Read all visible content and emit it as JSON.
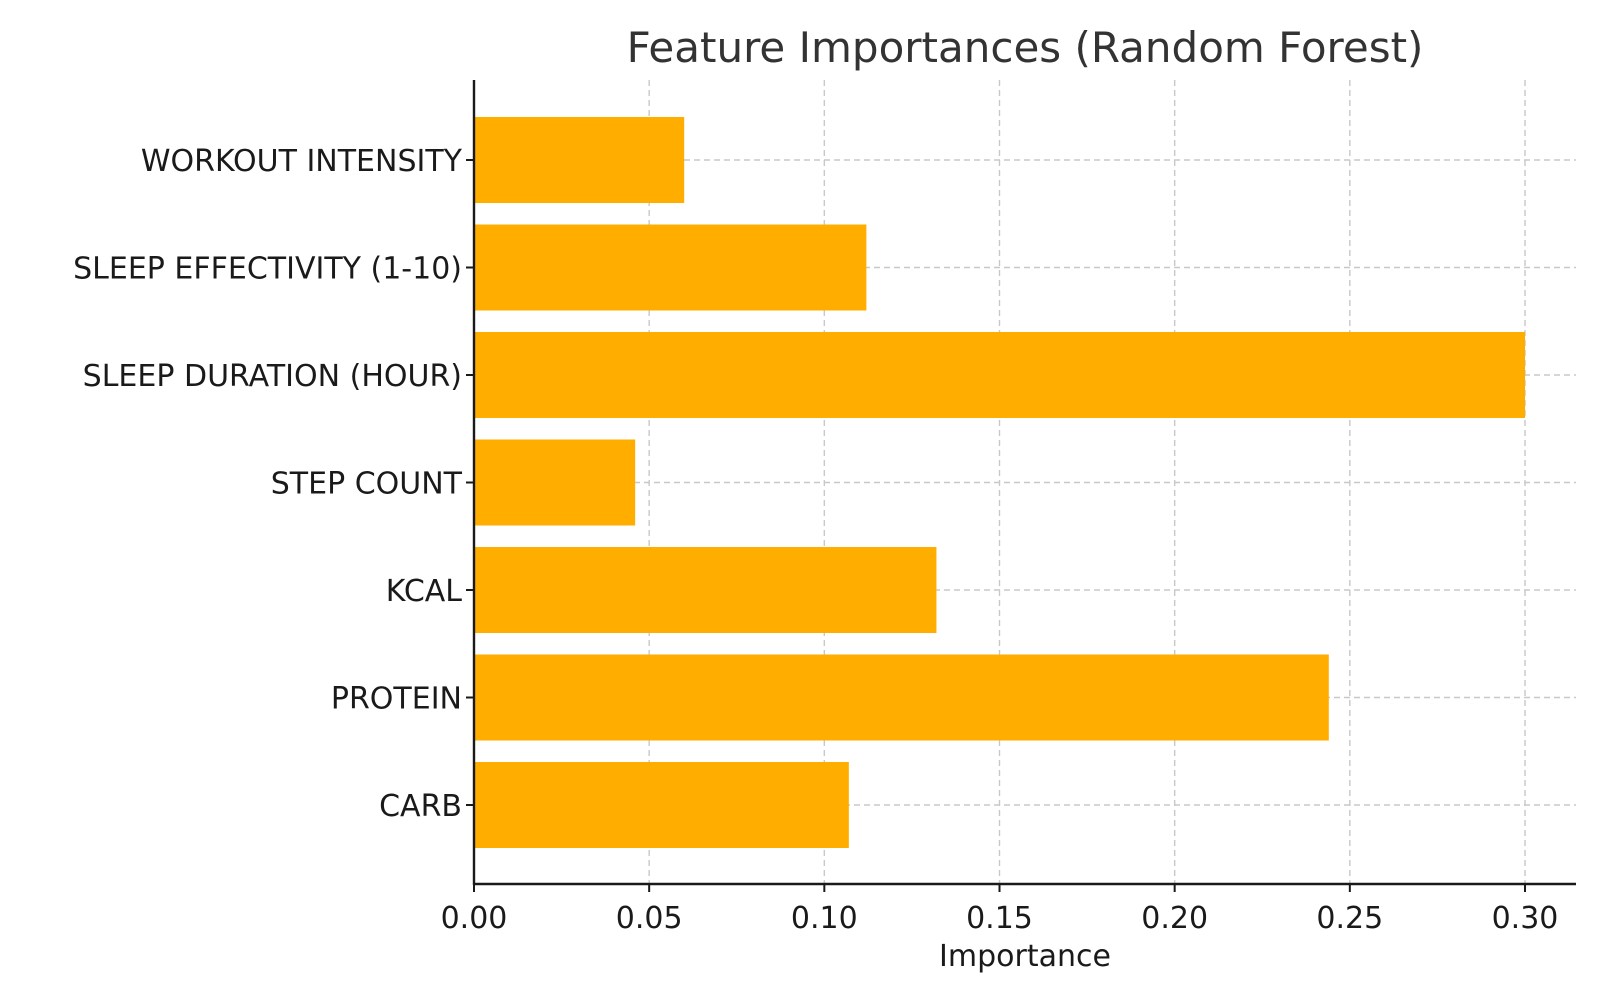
{
  "chart_data": {
    "type": "bar",
    "orientation": "horizontal",
    "title": "Feature Importances (Random Forest)",
    "xlabel": "Importance",
    "ylabel": "",
    "categories": [
      "WORKOUT INTENSITY",
      "SLEEP EFFECTIVITY (1-10)",
      "SLEEP DURATION (HOUR)",
      "STEP COUNT",
      "KCAL",
      "PROTEIN",
      "CARB"
    ],
    "values": [
      0.06,
      0.112,
      0.3,
      0.046,
      0.132,
      0.244,
      0.107
    ],
    "xlim": [
      0,
      0.315
    ],
    "xticks": [
      0.0,
      0.05,
      0.1,
      0.15,
      0.2,
      0.25,
      0.3
    ],
    "xtick_labels": [
      "0.00",
      "0.05",
      "0.10",
      "0.15",
      "0.20",
      "0.25",
      "0.30"
    ],
    "grid": true,
    "bar_color": "#ffae00"
  }
}
